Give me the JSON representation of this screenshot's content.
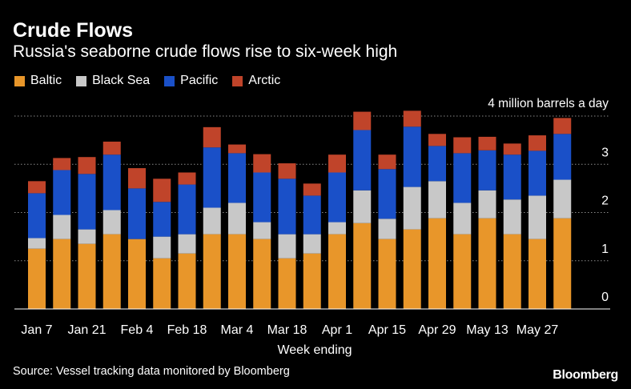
{
  "chart_data": {
    "type": "bar",
    "stacked": true,
    "title": "Crude Flows",
    "subtitle": "Russia's seaborne crude flows rise to six-week high",
    "xlabel": "Week ending",
    "y_unit_label": "4 million barrels a day",
    "ylim": [
      0,
      4
    ],
    "y_ticks": [
      0,
      1,
      2,
      3
    ],
    "grid": "horizontal dotted",
    "legend_position": "top-left",
    "x_tick_labels": [
      "Jan 7",
      "Jan 21",
      "Feb 4",
      "Feb 18",
      "Mar 4",
      "Mar 18",
      "Apr 1",
      "Apr 15",
      "Apr 29",
      "May 13",
      "May 27"
    ],
    "x_tick_indices": [
      0,
      2,
      4,
      6,
      8,
      10,
      12,
      14,
      16,
      18,
      20
    ],
    "categories": [
      "Jan 7",
      "Jan 14",
      "Jan 21",
      "Jan 28",
      "Feb 4",
      "Feb 11",
      "Feb 18",
      "Feb 25",
      "Mar 4",
      "Mar 11",
      "Mar 18",
      "Mar 25",
      "Apr 1",
      "Apr 8",
      "Apr 15",
      "Apr 22",
      "Apr 29",
      "May 6",
      "May 13",
      "May 20",
      "May 27",
      "Jun 3"
    ],
    "series": [
      {
        "name": "Baltic",
        "color": "#e8962a",
        "values": [
          1.25,
          1.45,
          1.35,
          1.55,
          1.45,
          1.05,
          1.15,
          1.55,
          1.55,
          1.45,
          1.05,
          1.15,
          1.55,
          1.78,
          1.45,
          1.65,
          1.88,
          1.55,
          1.88,
          1.55,
          1.45,
          1.88
        ]
      },
      {
        "name": "Black Sea",
        "color": "#c8c8c8",
        "values": [
          0.22,
          0.5,
          0.3,
          0.5,
          0.0,
          0.45,
          0.4,
          0.55,
          0.65,
          0.35,
          0.5,
          0.4,
          0.25,
          0.68,
          0.42,
          0.88,
          0.77,
          0.65,
          0.58,
          0.72,
          0.9,
          0.8
        ]
      },
      {
        "name": "Pacific",
        "color": "#1a50c8",
        "values": [
          0.93,
          0.93,
          1.15,
          1.15,
          1.05,
          0.72,
          1.03,
          1.25,
          1.03,
          1.03,
          1.15,
          0.8,
          1.03,
          1.25,
          1.03,
          1.25,
          0.73,
          1.03,
          0.83,
          0.93,
          0.93,
          0.95
        ]
      },
      {
        "name": "Arctic",
        "color": "#c0442a",
        "values": [
          0.25,
          0.25,
          0.35,
          0.27,
          0.42,
          0.48,
          0.25,
          0.42,
          0.18,
          0.38,
          0.32,
          0.25,
          0.37,
          0.38,
          0.3,
          0.33,
          0.25,
          0.33,
          0.28,
          0.23,
          0.32,
          0.33
        ]
      }
    ]
  },
  "footer": {
    "source": "Source: Vessel tracking data monitored by Bloomberg",
    "brand": "Bloomberg"
  }
}
